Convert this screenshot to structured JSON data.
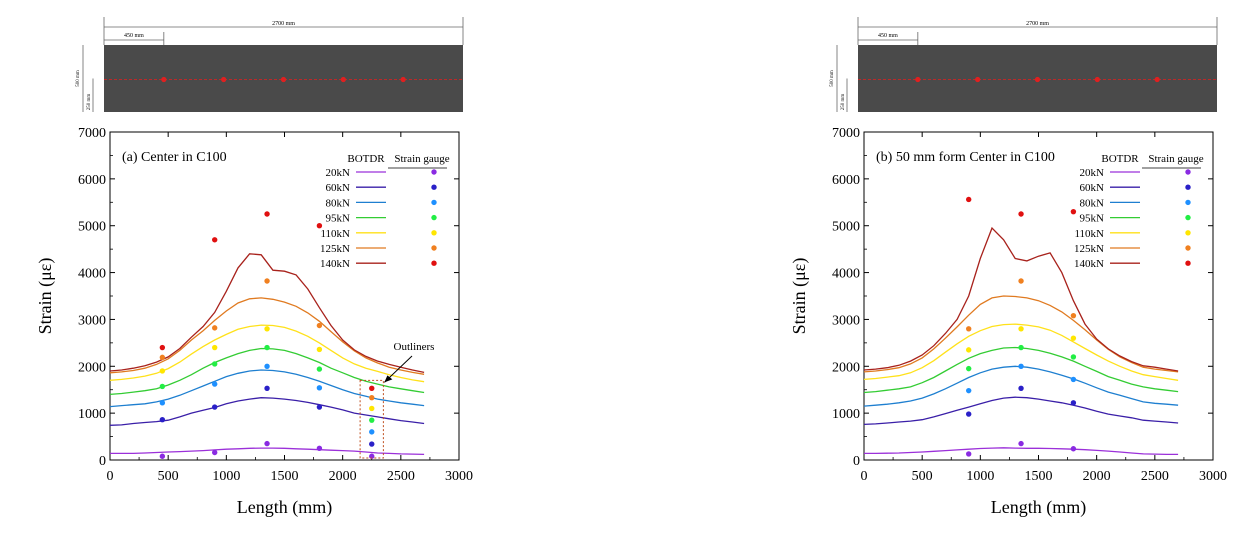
{
  "figure": {
    "panels": [
      {
        "schematic": {
          "total_length_label": "2700 mm",
          "spacing_label": "450 mm",
          "height_label": "500 mm",
          "half_height_label": "250 mm",
          "beam_color": "#4a4a4a",
          "line_color": "#e02020"
        },
        "panel_label": "(a) Center in C100",
        "annotation": {
          "text": "Outliners"
        }
      },
      {
        "schematic": {
          "total_length_label": "2700 mm",
          "spacing_label": "450 mm",
          "height_label": "500 mm",
          "half_height_label": "250 mm",
          "beam_color": "#4a4a4a",
          "line_color": "#e02020"
        },
        "panel_label": "(b) 50 mm form Center in C100"
      }
    ],
    "legend_header": {
      "botdr": "BOTDR",
      "strain_gauge": "Strain gauge"
    },
    "series_colors": [
      "#9b30d9",
      "#3a1fa8",
      "#1e7fd0",
      "#33cc33",
      "#ffe11a",
      "#e07a20",
      "#a8221c"
    ],
    "point_colors": [
      "#8a2be2",
      "#2a20c8",
      "#1e90ff",
      "#22ee44",
      "#ffe600",
      "#f08020",
      "#e01010"
    ]
  },
  "chart_data": [
    {
      "type": "line",
      "title": "",
      "xlabel": "Length (mm)",
      "ylabel": "Strain (με)",
      "xlim": [
        0,
        3000
      ],
      "ylim": [
        0,
        7000
      ],
      "xticks": [
        0,
        500,
        1000,
        1500,
        2000,
        2500,
        3000
      ],
      "yticks": [
        0,
        1000,
        2000,
        3000,
        4000,
        5000,
        6000,
        7000
      ],
      "x": [
        0,
        100,
        200,
        300,
        400,
        500,
        600,
        700,
        800,
        900,
        1000,
        1100,
        1200,
        1300,
        1400,
        1500,
        1600,
        1700,
        1800,
        1900,
        2000,
        2100,
        2200,
        2300,
        2400,
        2500,
        2600,
        2700
      ],
      "series": [
        {
          "name": "20kN",
          "values": [
            140,
            140,
            140,
            150,
            160,
            170,
            180,
            190,
            200,
            215,
            230,
            240,
            250,
            255,
            255,
            250,
            240,
            230,
            220,
            210,
            200,
            190,
            170,
            150,
            140,
            130,
            125,
            120
          ]
        },
        {
          "name": "60kN",
          "values": [
            740,
            750,
            780,
            800,
            820,
            850,
            920,
            1000,
            1060,
            1120,
            1200,
            1260,
            1300,
            1330,
            1320,
            1300,
            1270,
            1230,
            1180,
            1130,
            1070,
            1000,
            960,
            920,
            880,
            840,
            810,
            780
          ]
        },
        {
          "name": "80kN",
          "values": [
            1140,
            1160,
            1180,
            1200,
            1240,
            1300,
            1380,
            1480,
            1580,
            1680,
            1780,
            1850,
            1900,
            1920,
            1910,
            1880,
            1830,
            1760,
            1680,
            1590,
            1500,
            1420,
            1360,
            1300,
            1260,
            1220,
            1190,
            1160
          ]
        },
        {
          "name": "95kN",
          "values": [
            1400,
            1420,
            1450,
            1480,
            1520,
            1600,
            1700,
            1820,
            1960,
            2080,
            2180,
            2270,
            2340,
            2380,
            2370,
            2340,
            2270,
            2180,
            2080,
            1960,
            1860,
            1760,
            1680,
            1620,
            1560,
            1520,
            1480,
            1440
          ]
        },
        {
          "name": "110kN",
          "values": [
            1700,
            1720,
            1750,
            1790,
            1850,
            1950,
            2090,
            2260,
            2420,
            2560,
            2680,
            2790,
            2850,
            2880,
            2870,
            2830,
            2750,
            2640,
            2500,
            2340,
            2180,
            2050,
            1960,
            1890,
            1820,
            1760,
            1710,
            1670
          ]
        },
        {
          "name": "125kN",
          "values": [
            1860,
            1880,
            1910,
            1960,
            2040,
            2160,
            2340,
            2560,
            2760,
            2980,
            3180,
            3350,
            3440,
            3460,
            3430,
            3370,
            3280,
            3140,
            2960,
            2740,
            2520,
            2330,
            2180,
            2070,
            1980,
            1920,
            1870,
            1830
          ]
        },
        {
          "name": "140kN",
          "values": [
            1900,
            1920,
            1960,
            2010,
            2090,
            2200,
            2380,
            2620,
            2850,
            3150,
            3600,
            4100,
            4400,
            4380,
            4050,
            4030,
            3950,
            3650,
            3250,
            2870,
            2560,
            2350,
            2210,
            2110,
            2040,
            1980,
            1920,
            1870
          ]
        }
      ],
      "strain_gauge": {
        "x": [
          450,
          900,
          1350,
          1800,
          2250
        ],
        "series": [
          {
            "name": "20kN",
            "values": [
              80,
              160,
              350,
              250,
              80
            ]
          },
          {
            "name": "60kN",
            "values": [
              860,
              1130,
              1530,
              1130,
              340
            ]
          },
          {
            "name": "80kN",
            "values": [
              1220,
              1620,
              2000,
              1540,
              600
            ]
          },
          {
            "name": "95kN",
            "values": [
              1570,
              2050,
              2400,
              1940,
              850
            ]
          },
          {
            "name": "110kN",
            "values": [
              1900,
              2400,
              2800,
              2360,
              1100
            ]
          },
          {
            "name": "125kN",
            "values": [
              2190,
              2820,
              3820,
              2870,
              1330
            ]
          },
          {
            "name": "140kN",
            "values": [
              2400,
              4700,
              5250,
              5000,
              1530
            ]
          }
        ]
      }
    },
    {
      "type": "line",
      "title": "",
      "xlabel": "Length (mm)",
      "ylabel": "Strain (με)",
      "xlim": [
        0,
        3000
      ],
      "ylim": [
        0,
        7000
      ],
      "xticks": [
        0,
        500,
        1000,
        1500,
        2000,
        2500,
        3000
      ],
      "yticks": [
        0,
        1000,
        2000,
        3000,
        4000,
        5000,
        6000,
        7000
      ],
      "x": [
        0,
        100,
        200,
        300,
        400,
        500,
        600,
        700,
        800,
        900,
        1000,
        1100,
        1200,
        1300,
        1400,
        1500,
        1600,
        1700,
        1800,
        1900,
        2000,
        2100,
        2200,
        2300,
        2400,
        2500,
        2600,
        2700
      ],
      "series": [
        {
          "name": "20kN",
          "values": [
            140,
            140,
            145,
            150,
            160,
            170,
            185,
            200,
            215,
            230,
            245,
            255,
            260,
            255,
            250,
            250,
            245,
            240,
            230,
            220,
            205,
            190,
            170,
            150,
            130,
            125,
            120,
            120
          ]
        },
        {
          "name": "60kN",
          "values": [
            760,
            770,
            790,
            810,
            830,
            860,
            920,
            990,
            1060,
            1130,
            1200,
            1270,
            1320,
            1340,
            1330,
            1300,
            1260,
            1220,
            1170,
            1110,
            1040,
            980,
            940,
            900,
            850,
            830,
            810,
            790
          ]
        },
        {
          "name": "80kN",
          "values": [
            1150,
            1170,
            1190,
            1220,
            1260,
            1320,
            1410,
            1520,
            1640,
            1760,
            1860,
            1940,
            1980,
            2000,
            1980,
            1940,
            1880,
            1810,
            1730,
            1640,
            1540,
            1450,
            1380,
            1310,
            1240,
            1210,
            1190,
            1170
          ]
        },
        {
          "name": "95kN",
          "values": [
            1440,
            1460,
            1490,
            1520,
            1560,
            1650,
            1760,
            1900,
            2040,
            2170,
            2270,
            2340,
            2390,
            2400,
            2380,
            2340,
            2280,
            2200,
            2110,
            2000,
            1890,
            1780,
            1700,
            1620,
            1560,
            1520,
            1490,
            1460
          ]
        },
        {
          "name": "110kN",
          "values": [
            1720,
            1740,
            1770,
            1800,
            1860,
            1970,
            2120,
            2300,
            2480,
            2640,
            2760,
            2850,
            2890,
            2900,
            2880,
            2840,
            2770,
            2660,
            2520,
            2380,
            2240,
            2110,
            2000,
            1900,
            1820,
            1780,
            1740,
            1700
          ]
        },
        {
          "name": "125kN",
          "values": [
            1880,
            1900,
            1930,
            1970,
            2050,
            2180,
            2370,
            2600,
            2840,
            3090,
            3320,
            3460,
            3500,
            3490,
            3460,
            3400,
            3300,
            3160,
            2980,
            2780,
            2560,
            2360,
            2200,
            2080,
            1980,
            1940,
            1910,
            1880
          ]
        },
        {
          "name": "140kN",
          "values": [
            1920,
            1940,
            1970,
            2020,
            2110,
            2240,
            2440,
            2700,
            3000,
            3500,
            4300,
            4950,
            4700,
            4300,
            4250,
            4350,
            4420,
            4000,
            3400,
            2900,
            2580,
            2370,
            2220,
            2100,
            2010,
            1980,
            1940,
            1900
          ]
        }
      ],
      "strain_gauge": {
        "x": [
          900,
          1350,
          1800
        ],
        "series": [
          {
            "name": "20kN",
            "values": [
              130,
              350,
              240
            ]
          },
          {
            "name": "60kN",
            "values": [
              980,
              1530,
              1220
            ]
          },
          {
            "name": "80kN",
            "values": [
              1480,
              2000,
              1720
            ]
          },
          {
            "name": "95kN",
            "values": [
              1950,
              2400,
              2200
            ]
          },
          {
            "name": "110kN",
            "values": [
              2350,
              2800,
              2600
            ]
          },
          {
            "name": "125kN",
            "values": [
              2800,
              3820,
              3080
            ]
          },
          {
            "name": "140kN",
            "values": [
              5560,
              5250,
              5300
            ]
          }
        ]
      }
    }
  ]
}
